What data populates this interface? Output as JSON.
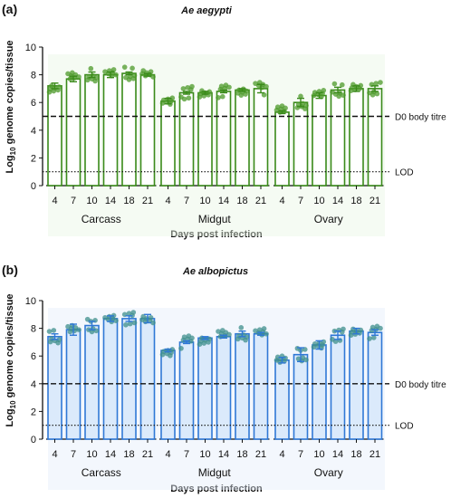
{
  "panels": [
    {
      "tag": "(a)",
      "title": "Ae aegypti",
      "ylabel_prefix": "Log",
      "ylabel_sub": "10",
      "ylabel_suffix": " genome copies/tissue",
      "xlabel": "Days post infection",
      "bar_fill": "#ffffff",
      "bar_stroke": "#3a8a1a",
      "dot_color": "#4c9a2a",
      "accent_bg": "#e9f6e4"
    },
    {
      "tag": "(b)",
      "title": "Ae albopictus",
      "ylabel_prefix": "Log",
      "ylabel_sub": "10",
      "ylabel_suffix": " genome copies/tissue",
      "xlabel": "Days post infection",
      "bar_fill": "#dbeafb",
      "bar_stroke": "#2f78d6",
      "dot_color": "#3f8f8c",
      "accent_bg": "#e4eefb"
    }
  ],
  "chart_data": [
    {
      "type": "bar",
      "title": "Ae aegypti",
      "xlabel": "Days post infection",
      "ylabel": "Log10 genome copies/tissue",
      "ylim": [
        0,
        10
      ],
      "yticks": [
        0,
        2,
        4,
        6,
        8,
        10
      ],
      "tissues": [
        "Carcass",
        "Midgut",
        "Ovary"
      ],
      "days": [
        "4",
        "7",
        "10",
        "14",
        "18",
        "21"
      ],
      "series": [
        {
          "name": "Carcass",
          "values": [
            7.2,
            7.7,
            8.0,
            8.0,
            8.1,
            8.0
          ],
          "errors": [
            0.2,
            0.2,
            0.2,
            0.2,
            0.1,
            0.1
          ]
        },
        {
          "name": "Midgut",
          "values": [
            6.1,
            6.7,
            6.7,
            6.8,
            6.9,
            7.0
          ],
          "errors": [
            0.2,
            0.1,
            0.1,
            0.1,
            0.1,
            0.3
          ]
        },
        {
          "name": "Ovary",
          "values": [
            5.3,
            6.0,
            6.5,
            6.9,
            7.0,
            7.0
          ],
          "errors": [
            0.1,
            0.3,
            0.2,
            0.2,
            0.2,
            0.2
          ]
        }
      ],
      "reference_lines": [
        {
          "label": "D0 body titre",
          "value": 5.0,
          "style": "dashed"
        },
        {
          "label": "LOD",
          "value": 1.0,
          "style": "dotted"
        }
      ]
    },
    {
      "type": "bar",
      "title": "Ae albopictus",
      "xlabel": "Days post infection",
      "ylabel": "Log10 genome copies/tissue",
      "ylim": [
        0,
        10
      ],
      "yticks": [
        0,
        2,
        4,
        6,
        8,
        10
      ],
      "tissues": [
        "Carcass",
        "Midgut",
        "Ovary"
      ],
      "days": [
        "4",
        "7",
        "10",
        "14",
        "18",
        "21"
      ],
      "series": [
        {
          "name": "Carcass",
          "values": [
            7.4,
            7.9,
            8.2,
            8.7,
            8.7,
            8.7
          ],
          "errors": [
            0.2,
            0.4,
            0.3,
            0.2,
            0.2,
            0.3
          ]
        },
        {
          "name": "Midgut",
          "values": [
            6.4,
            7.0,
            7.3,
            7.4,
            7.6,
            7.6
          ],
          "errors": [
            0.1,
            0.1,
            0.1,
            0.1,
            0.2,
            0.1
          ]
        },
        {
          "name": "Ovary",
          "values": [
            5.7,
            6.1,
            6.8,
            7.5,
            7.8,
            7.7
          ],
          "errors": [
            0.2,
            0.5,
            0.3,
            0.3,
            0.2,
            0.2
          ]
        }
      ],
      "reference_lines": [
        {
          "label": "D0 body titre",
          "value": 4.0,
          "style": "dashed"
        },
        {
          "label": "LOD",
          "value": 1.0,
          "style": "dotted"
        }
      ]
    }
  ]
}
